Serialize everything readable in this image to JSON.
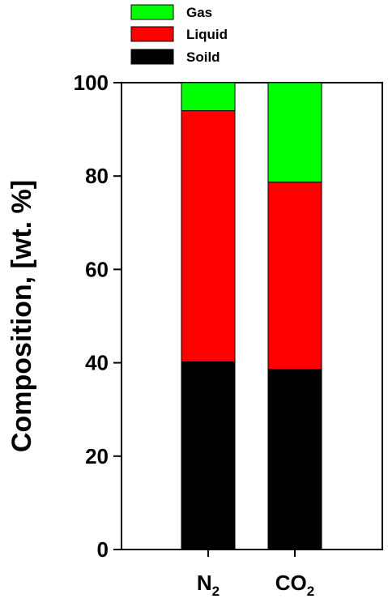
{
  "chart_data": {
    "type": "bar",
    "stacked": true,
    "categories": [
      {
        "base": "N",
        "sub": "2"
      },
      {
        "base": "CO",
        "sub": "2"
      }
    ],
    "series": [
      {
        "name": "Soild",
        "color": "#000000",
        "values": [
          40.2,
          38.6
        ]
      },
      {
        "name": "Liquid",
        "color": "#ff0000",
        "values": [
          53.8,
          40.1
        ]
      },
      {
        "name": "Gas",
        "color": "#00ff00",
        "values": [
          6.0,
          21.3
        ]
      }
    ],
    "legend_order": [
      "Gas",
      "Liquid",
      "Soild"
    ],
    "legend_position": "top-center",
    "ylabel": "Composition, [wt. %]",
    "ylim": [
      0,
      100
    ],
    "yticks": [
      "0",
      "20",
      "40",
      "60",
      "80",
      "100"
    ],
    "grid": false
  }
}
